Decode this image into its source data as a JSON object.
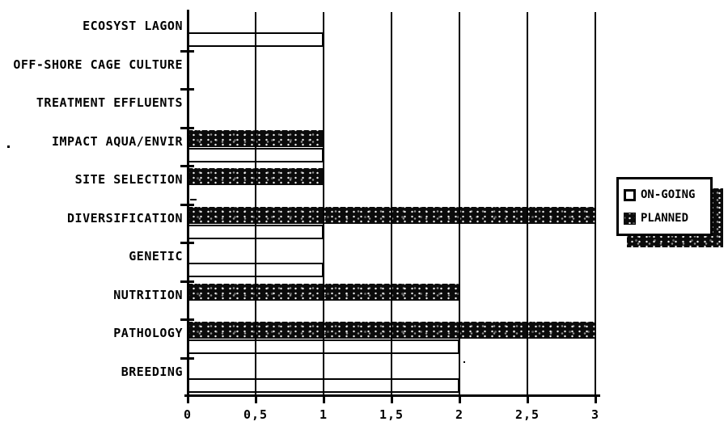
{
  "chart_data": {
    "type": "bar",
    "orientation": "horizontal",
    "title": "",
    "xlabel": "",
    "ylabel": "",
    "categories": [
      "ECOSYST LAGON",
      "OFF-SHORE CAGE CULTURE",
      "TREATMENT EFFLUENTS",
      "IMPACT AQUA/ENVIR",
      "SITE SELECTION",
      "DIVERSIFICATION",
      "GENETIC",
      "NUTRITION",
      "PATHOLOGY",
      "BREEDING"
    ],
    "series": [
      {
        "name": "ON-GOING",
        "style": "white-outlined-bar",
        "values": [
          1,
          0,
          0,
          1,
          0,
          1,
          1,
          0,
          2,
          2
        ]
      },
      {
        "name": "PLANNED",
        "style": "solid-dark-speckled-bar",
        "values": [
          0,
          0,
          0,
          1,
          1,
          3,
          0,
          2,
          3,
          0
        ]
      }
    ],
    "xlim": [
      0,
      3
    ],
    "x_ticks": [
      {
        "value": 0,
        "label": "0"
      },
      {
        "value": 0.5,
        "label": "0,5"
      },
      {
        "value": 1,
        "label": "1"
      },
      {
        "value": 1.5,
        "label": "1,5"
      },
      {
        "value": 2,
        "label": "2"
      },
      {
        "value": 2.5,
        "label": "2,5"
      },
      {
        "value": 3,
        "label": "3"
      }
    ],
    "grid": "vertical-gridlines-on",
    "legend_position": "right"
  },
  "legend": {
    "items": [
      {
        "label": "ON-GOING",
        "swatch": "white-outlined"
      },
      {
        "label": "PLANNED",
        "swatch": "dark-speckled"
      }
    ]
  },
  "colors": {
    "ink": "#000000",
    "planned_bar": "#0b0b0b",
    "ongoing_fill": "#ffffff",
    "background": "#ffffff"
  }
}
